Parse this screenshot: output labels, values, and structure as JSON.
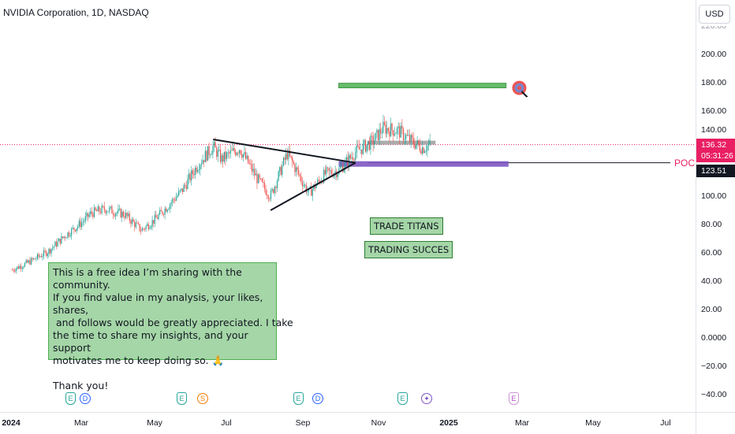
{
  "header": {
    "symbol_title": "NVIDIA Corporation, 1D, NASDAQ",
    "currency_button": "USD"
  },
  "price_axis": {
    "ticks": [
      "200.00",
      "180.00",
      "160.00",
      "140.00",
      "100.00",
      "80.00",
      "60.00",
      "40.00",
      "20.00",
      "0.0000",
      "−20.00",
      "−40.00"
    ],
    "top_cut_label": "220.00",
    "last_price": "136.32",
    "countdown": "05:31:26",
    "poc_price": "123.51",
    "colors": {
      "last_price_bg": "#e91e63",
      "poc_bg": "#131722"
    }
  },
  "time_axis": {
    "ticks": [
      {
        "label": "2024",
        "bold": true
      },
      {
        "label": "Mar",
        "bold": false
      },
      {
        "label": "May",
        "bold": false
      },
      {
        "label": "Jul",
        "bold": false
      },
      {
        "label": "Sep",
        "bold": false
      },
      {
        "label": "Nov",
        "bold": false
      },
      {
        "label": "2025",
        "bold": true
      },
      {
        "label": "Mar",
        "bold": false
      },
      {
        "label": "May",
        "bold": false
      },
      {
        "label": "Jul",
        "bold": false
      }
    ]
  },
  "drawings": {
    "poc_label": "POC",
    "trade_titans_label": "TRADE TITANS",
    "trading_succes_label": "TRADING SUCCES",
    "note": {
      "line1": "This is a free idea I’m sharing with the community.",
      "line2": "If you find value in my analysis, your likes, shares,",
      "line3": " and follows would be greatly appreciated. I take",
      "line4": "the time to share my insights, and your support",
      "line5": "motivates me to keep doing so. 🙏",
      "line6": "Thank you!"
    },
    "colors": {
      "target_zone": "#66bb6a",
      "poc_zone": "#7e57c2",
      "consolidation_zone": "#9e9e9e"
    }
  },
  "events": [
    {
      "type": "earnings",
      "icon": "E"
    },
    {
      "type": "dividend",
      "icon": "D"
    },
    {
      "type": "earnings",
      "icon": "E"
    },
    {
      "type": "split",
      "icon": "S"
    },
    {
      "type": "earnings",
      "icon": "E"
    },
    {
      "type": "dividend",
      "icon": "D"
    },
    {
      "type": "earnings",
      "icon": "E"
    },
    {
      "type": "special",
      "icon": "✦"
    },
    {
      "type": "earnings-future",
      "icon": "E"
    }
  ],
  "chart_data": {
    "type": "candlestick",
    "symbol": "NVIDIA Corporation",
    "interval": "1D",
    "exchange": "NASDAQ",
    "currency": "USD",
    "y_range": [
      -48,
      228
    ],
    "series": [
      {
        "date": "2024-01-02",
        "close": 48
      },
      {
        "date": "2024-01-15",
        "close": 53
      },
      {
        "date": "2024-02-01",
        "close": 61
      },
      {
        "date": "2024-02-15",
        "close": 72
      },
      {
        "date": "2024-03-01",
        "close": 82
      },
      {
        "date": "2024-03-08",
        "close": 88
      },
      {
        "date": "2024-03-20",
        "close": 91
      },
      {
        "date": "2024-04-05",
        "close": 87
      },
      {
        "date": "2024-04-19",
        "close": 76
      },
      {
        "date": "2024-05-01",
        "close": 84
      },
      {
        "date": "2024-05-23",
        "close": 104
      },
      {
        "date": "2024-06-05",
        "close": 122
      },
      {
        "date": "2024-06-18",
        "close": 135
      },
      {
        "date": "2024-06-25",
        "close": 126
      },
      {
        "date": "2024-07-10",
        "close": 134
      },
      {
        "date": "2024-07-25",
        "close": 112
      },
      {
        "date": "2024-08-05",
        "close": 100
      },
      {
        "date": "2024-08-19",
        "close": 130
      },
      {
        "date": "2024-09-06",
        "close": 102
      },
      {
        "date": "2024-09-20",
        "close": 116
      },
      {
        "date": "2024-10-01",
        "close": 118
      },
      {
        "date": "2024-10-15",
        "close": 131
      },
      {
        "date": "2024-10-30",
        "close": 139
      },
      {
        "date": "2024-11-07",
        "close": 148
      },
      {
        "date": "2024-11-20",
        "close": 146
      },
      {
        "date": "2024-12-02",
        "close": 138
      },
      {
        "date": "2024-12-10",
        "close": 134
      },
      {
        "date": "2024-12-17",
        "close": 136.32
      }
    ],
    "annotations": {
      "last_price": 136.32,
      "poc": 123.51,
      "target_zone": 178,
      "triangle_upper_start": 140,
      "triangle_lower_start": 90
    }
  }
}
